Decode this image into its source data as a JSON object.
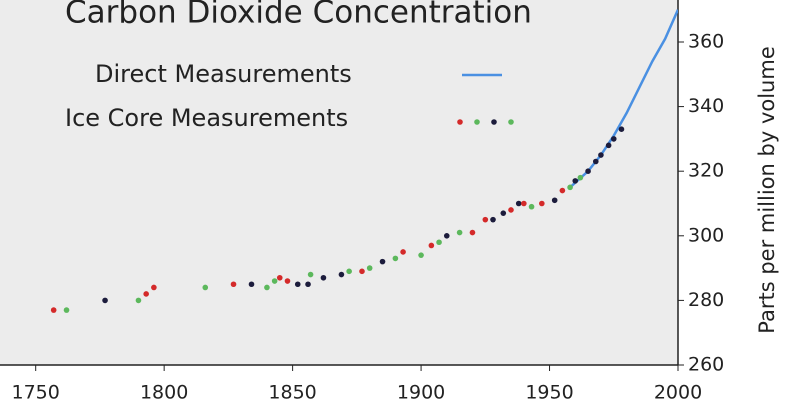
{
  "chart_data": {
    "type": "scatter-line",
    "title": "Carbon Dioxide Concentration",
    "y_label": "Parts per million by volume",
    "xlim": [
      1740,
      2000
    ],
    "ylim": [
      260,
      373
    ],
    "xticks": [
      1750,
      1800,
      1850,
      1900,
      1950,
      2000
    ],
    "yticks": [
      260,
      280,
      300,
      320,
      340,
      360
    ],
    "series": [
      {
        "name": "Direct Measurements",
        "kind": "line",
        "color": "#4a90e2",
        "x": [
          1958,
          1965,
          1970,
          1975,
          1980,
          1985,
          1990,
          1995,
          2000
        ],
        "values": [
          315,
          320,
          325,
          331,
          338,
          346,
          354,
          361,
          370
        ]
      },
      {
        "name": "Ice Core Measurements",
        "kind": "scatter",
        "x": [
          1757,
          1762,
          1777,
          1790,
          1793,
          1796,
          1816,
          1827,
          1834,
          1840,
          1843,
          1845,
          1848,
          1852,
          1856,
          1857,
          1862,
          1869,
          1872,
          1877,
          1880,
          1885,
          1890,
          1893,
          1900,
          1904,
          1907,
          1910,
          1915,
          1920,
          1925,
          1928,
          1932,
          1935,
          1938,
          1940,
          1943,
          1947,
          1952,
          1955,
          1958,
          1960,
          1962,
          1965,
          1968,
          1970,
          1973,
          1975,
          1978
        ],
        "values": [
          277,
          277,
          280,
          280,
          282,
          284,
          284,
          285,
          285,
          284,
          286,
          287,
          286,
          285,
          285,
          288,
          287,
          288,
          289,
          289,
          290,
          292,
          293,
          295,
          294,
          297,
          298,
          300,
          301,
          301,
          305,
          305,
          307,
          308,
          310,
          310,
          309,
          310,
          311,
          314,
          315,
          317,
          318,
          320,
          323,
          325,
          328,
          330,
          333
        ],
        "colors": [
          "#d42a2a",
          "#5cb85c",
          "#1c1c3c",
          "#5cb85c",
          "#d42a2a",
          "#d42a2a",
          "#5cb85c",
          "#d42a2a",
          "#1c1c3c",
          "#5cb85c",
          "#5cb85c",
          "#d42a2a",
          "#d42a2a",
          "#1c1c3c",
          "#1c1c3c",
          "#5cb85c",
          "#1c1c3c",
          "#1c1c3c",
          "#5cb85c",
          "#d42a2a",
          "#5cb85c",
          "#1c1c3c",
          "#5cb85c",
          "#d42a2a",
          "#5cb85c",
          "#d42a2a",
          "#5cb85c",
          "#1c1c3c",
          "#5cb85c",
          "#d42a2a",
          "#d42a2a",
          "#1c1c3c",
          "#1c1c3c",
          "#d42a2a",
          "#1c1c3c",
          "#d42a2a",
          "#5cb85c",
          "#d42a2a",
          "#1c1c3c",
          "#d42a2a",
          "#5cb85c",
          "#1c1c3c",
          "#5cb85c",
          "#1c1c3c",
          "#1c1c3c",
          "#1c1c3c",
          "#1c1c3c",
          "#1c1c3c",
          "#1c1c3c"
        ]
      }
    ]
  }
}
